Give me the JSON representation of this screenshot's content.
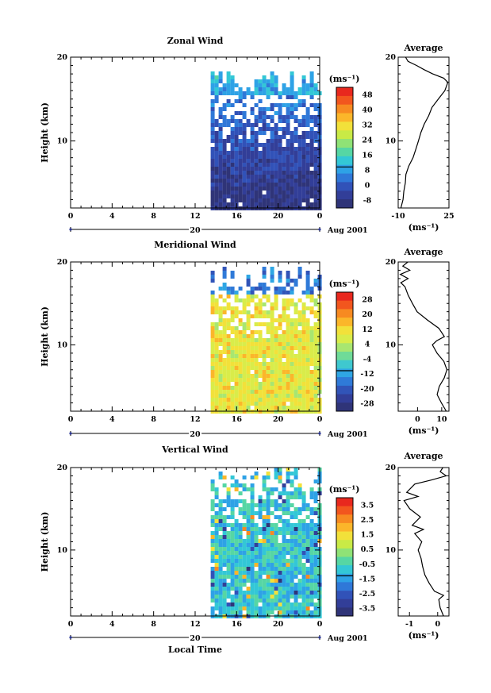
{
  "chart_data": [
    {
      "type": "heatmap",
      "title": "Zonal Wind",
      "ylabel": "Height (km)",
      "y_ticks": [
        "20",
        "10"
      ],
      "ylim": [
        2,
        20
      ],
      "x_ticks": [
        "0",
        "4",
        "8",
        "12",
        "16",
        "20",
        "0"
      ],
      "xlim": [
        0,
        24
      ],
      "date_label": "20",
      "date_suffix": "Aug 2001",
      "data_start_hour": 13.5,
      "colorbar": {
        "unit": "(ms⁻¹)",
        "labels": [
          "48",
          "40",
          "32",
          "24",
          "16",
          "8",
          "0",
          "-8"
        ],
        "zero_label": "0",
        "colors": [
          "#e8281e",
          "#f2561e",
          "#f78a21",
          "#fbb62a",
          "#f2e13a",
          "#c9ea46",
          "#8fe276",
          "#56d6a4",
          "#33c7d6",
          "#2ea2e6",
          "#2f78d8",
          "#3152b8",
          "#323e98",
          "#2f3478"
        ]
      },
      "average": {
        "title": "Average",
        "xlabel": "(ms⁻¹)",
        "x_ticks": [
          "-10",
          "25"
        ],
        "xlim": [
          -10,
          25
        ],
        "y_ticks": [
          "20",
          "10"
        ],
        "ylim": [
          2,
          20
        ],
        "profile": [
          [
            -8,
            2
          ],
          [
            -7,
            3
          ],
          [
            -6,
            4
          ],
          [
            -5,
            5
          ],
          [
            -5,
            6
          ],
          [
            -3,
            7
          ],
          [
            0,
            8
          ],
          [
            2,
            9
          ],
          [
            4,
            10
          ],
          [
            6,
            11
          ],
          [
            8,
            12
          ],
          [
            11,
            13
          ],
          [
            13,
            14
          ],
          [
            18,
            15
          ],
          [
            22,
            16
          ],
          [
            24,
            17
          ],
          [
            21,
            17.5
          ],
          [
            14,
            18
          ],
          [
            8,
            18.5
          ],
          [
            3,
            19
          ],
          [
            -3,
            19.5
          ],
          [
            -5,
            20
          ]
        ]
      }
    },
    {
      "type": "heatmap",
      "title": "Meridional Wind",
      "ylabel": "Height (km)",
      "y_ticks": [
        "20",
        "10"
      ],
      "ylim": [
        2,
        20
      ],
      "x_ticks": [
        "0",
        "4",
        "8",
        "12",
        "16",
        "20",
        "0"
      ],
      "xlim": [
        0,
        24
      ],
      "date_label": "20",
      "date_suffix": "Aug 2001",
      "data_start_hour": 13.5,
      "colorbar": {
        "unit": "(ms⁻¹)",
        "labels": [
          "28",
          "20",
          "12",
          "4",
          "-4",
          "-12",
          "-20",
          "-28"
        ],
        "zero_label": "",
        "colors": [
          "#e8281e",
          "#f2561e",
          "#f78a21",
          "#fbb62a",
          "#f2e13a",
          "#d9ec4a",
          "#a8e670",
          "#6fdb98",
          "#3fc8cf",
          "#2fa6e4",
          "#2f7ad8",
          "#3154b8",
          "#323e98",
          "#2f3478"
        ]
      },
      "average": {
        "title": "Average",
        "xlabel": "(ms⁻¹)",
        "x_ticks": [
          "0",
          "10"
        ],
        "xlim": [
          -8,
          13
        ],
        "y_ticks": [
          "20",
          "10"
        ],
        "ylim": [
          2,
          20
        ],
        "profile": [
          [
            12,
            2
          ],
          [
            10,
            3
          ],
          [
            8,
            4
          ],
          [
            9,
            5
          ],
          [
            11,
            6
          ],
          [
            12,
            7
          ],
          [
            11,
            8
          ],
          [
            8,
            9
          ],
          [
            6,
            10
          ],
          [
            8,
            10.5
          ],
          [
            11,
            11
          ],
          [
            9,
            12
          ],
          [
            4,
            13
          ],
          [
            0,
            14
          ],
          [
            -2,
            15
          ],
          [
            -4,
            16
          ],
          [
            -5,
            17
          ],
          [
            -7,
            17.5
          ],
          [
            -4,
            18
          ],
          [
            -7,
            18.5
          ],
          [
            -3,
            19
          ],
          [
            -6,
            19.5
          ],
          [
            -4,
            20
          ]
        ]
      }
    },
    {
      "type": "heatmap",
      "title": "Vertical Wind",
      "ylabel": "Height (km)",
      "y_ticks": [
        "20",
        "10"
      ],
      "ylim": [
        2,
        20
      ],
      "x_ticks": [
        "0",
        "4",
        "8",
        "12",
        "16",
        "20",
        "0"
      ],
      "xlim": [
        0,
        24
      ],
      "xlabel": "Local Time",
      "date_label": "20",
      "date_suffix": "Aug 2001",
      "data_start_hour": 13.5,
      "colorbar": {
        "unit": "(ms⁻¹)",
        "labels": [
          "3.5",
          "2.5",
          "1.5",
          "0.5",
          "-0.5",
          "-1.5",
          "-2.5",
          "-3.5"
        ],
        "zero_label": "",
        "colors": [
          "#e8281e",
          "#f2561e",
          "#f78a21",
          "#fbb62a",
          "#f2e13a",
          "#c9ea46",
          "#8fe276",
          "#56d6a4",
          "#33c7d6",
          "#2ea2e6",
          "#2f78d8",
          "#3152b8",
          "#323e98",
          "#2f3478"
        ]
      },
      "average": {
        "title": "Average",
        "xlabel": "(ms⁻¹)",
        "x_ticks": [
          "-1",
          "0"
        ],
        "xlim": [
          -1.4,
          0.4
        ],
        "y_ticks": [
          "20",
          "10"
        ],
        "ylim": [
          2,
          20
        ],
        "profile": [
          [
            0.2,
            2
          ],
          [
            0.1,
            3
          ],
          [
            0.05,
            4
          ],
          [
            0.2,
            4.5
          ],
          [
            -0.1,
            5
          ],
          [
            -0.3,
            6
          ],
          [
            -0.45,
            7
          ],
          [
            -0.55,
            8
          ],
          [
            -0.6,
            9
          ],
          [
            -0.7,
            10
          ],
          [
            -0.55,
            11
          ],
          [
            -0.8,
            12
          ],
          [
            -0.5,
            12.5
          ],
          [
            -0.9,
            13
          ],
          [
            -0.6,
            14
          ],
          [
            -1.0,
            15
          ],
          [
            -1.2,
            16
          ],
          [
            -0.7,
            16.5
          ],
          [
            -1.1,
            17
          ],
          [
            -0.8,
            18
          ],
          [
            -0.2,
            18.5
          ],
          [
            0.3,
            19
          ],
          [
            0.1,
            19.5
          ],
          [
            0.2,
            20
          ]
        ]
      }
    }
  ]
}
